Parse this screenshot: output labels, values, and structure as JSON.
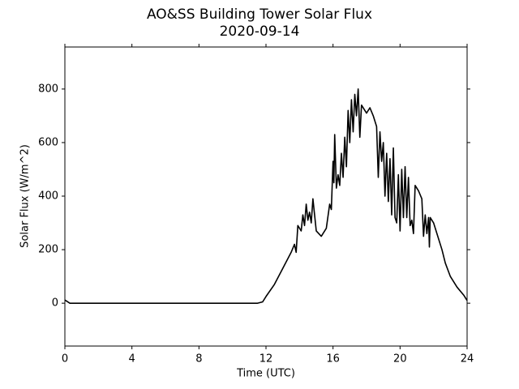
{
  "chart_data": {
    "type": "line",
    "title": "AO&SS Building Tower Solar Flux",
    "subtitle": "2020-09-14",
    "x_label": "Time (UTC)",
    "y_label": "Solar Flux (W/m^2)",
    "xlim": [
      0,
      24
    ],
    "xticks": [
      0,
      4,
      8,
      12,
      16,
      20,
      24
    ],
    "ylim": [
      -160,
      957
    ],
    "yticks": [
      0,
      200,
      400,
      600,
      800
    ],
    "series": [
      {
        "name": "Solar Flux",
        "color": "#000000",
        "x": [
          0,
          0.3,
          11.5,
          11.8,
          12,
          12.5,
          13,
          13.5,
          13.7,
          13.8,
          13.9,
          14.1,
          14.2,
          14.3,
          14.4,
          14.5,
          14.6,
          14.7,
          14.8,
          14.9,
          15,
          15.3,
          15.6,
          15.8,
          15.9,
          16,
          16.05,
          16.1,
          16.2,
          16.3,
          16.4,
          16.5,
          16.6,
          16.7,
          16.8,
          16.9,
          17,
          17.1,
          17.2,
          17.3,
          17.4,
          17.5,
          17.6,
          17.7,
          17.9,
          18,
          18.2,
          18.4,
          18.6,
          18.7,
          18.8,
          18.9,
          19,
          19.1,
          19.2,
          19.3,
          19.4,
          19.5,
          19.6,
          19.7,
          19.8,
          19.9,
          20,
          20.1,
          20.2,
          20.3,
          20.4,
          20.5,
          20.6,
          20.7,
          20.8,
          20.9,
          21.1,
          21.3,
          21.4,
          21.5,
          21.6,
          21.7,
          21.75,
          21.8,
          22,
          22.3,
          22.5,
          22.7,
          23,
          23.4,
          23.8,
          24
        ],
        "values": [
          12,
          0,
          0,
          5,
          25,
          70,
          130,
          190,
          220,
          190,
          290,
          270,
          330,
          290,
          370,
          310,
          340,
          300,
          390,
          330,
          270,
          250,
          280,
          370,
          350,
          530,
          450,
          630,
          430,
          480,
          440,
          560,
          470,
          620,
          510,
          720,
          600,
          760,
          640,
          780,
          700,
          800,
          620,
          740,
          720,
          710,
          730,
          700,
          660,
          470,
          640,
          530,
          600,
          400,
          560,
          380,
          540,
          330,
          580,
          320,
          300,
          480,
          270,
          500,
          320,
          510,
          320,
          470,
          290,
          310,
          260,
          440,
          420,
          390,
          250,
          330,
          260,
          320,
          210,
          320,
          300,
          240,
          200,
          150,
          100,
          60,
          30,
          10
        ]
      }
    ]
  }
}
